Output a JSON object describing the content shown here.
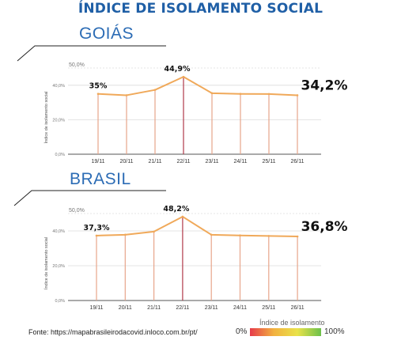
{
  "title": "ÍNDICE DE ISOLAMENTO SOCIAL",
  "footer": "Fonte: https://mapabrasileirodacovid.inloco.com.br/pt/",
  "legend": {
    "title": "Índice de isolamento",
    "min_label": "0%",
    "max_label": "100%",
    "colors": [
      "#e63a4a",
      "#f2b13f",
      "#e9e24a",
      "#6cc04a"
    ]
  },
  "colors": {
    "title": "#1f5fa6",
    "region": "#2c6cb5",
    "line": "#f0a95a",
    "drop": "#e7a58a",
    "grid": "#dcdcdc"
  },
  "chart_data": [
    {
      "type": "line",
      "title": "GOIÁS",
      "ylabel": "Índice de isolamento social",
      "yticks": [
        "0,0%",
        "20,0%",
        "40,0%",
        "50,0%"
      ],
      "ylim": [
        0,
        50
      ],
      "categories": [
        "19/11",
        "20/11",
        "21/11",
        "22/11",
        "23/11",
        "24/11",
        "25/11",
        "26/11"
      ],
      "values": [
        35.0,
        34.2,
        37.3,
        44.9,
        35.4,
        35.0,
        34.9,
        34.2
      ],
      "data_labels": [
        {
          "index": 0,
          "text": "35%",
          "size": "small"
        },
        {
          "index": 3,
          "text": "44,9%",
          "size": "small"
        },
        {
          "index": 7,
          "text": "34,2%",
          "size": "large"
        }
      ],
      "grid": true
    },
    {
      "type": "line",
      "title": "BRASIL",
      "ylabel": "Índice de isolamento social",
      "yticks": [
        "0,0%",
        "20,0%",
        "40,0%",
        "50,0%"
      ],
      "ylim": [
        0,
        50
      ],
      "categories": [
        "19/11",
        "20/11",
        "21/11",
        "22/11",
        "23/11",
        "24/11",
        "25/11",
        "26/11"
      ],
      "values": [
        37.3,
        37.8,
        39.6,
        48.2,
        37.8,
        37.4,
        37.1,
        36.8
      ],
      "data_labels": [
        {
          "index": 0,
          "text": "37,3%",
          "size": "small"
        },
        {
          "index": 3,
          "text": "48,2%",
          "size": "small"
        },
        {
          "index": 7,
          "text": "36,8%",
          "size": "large"
        }
      ],
      "grid": true
    }
  ]
}
